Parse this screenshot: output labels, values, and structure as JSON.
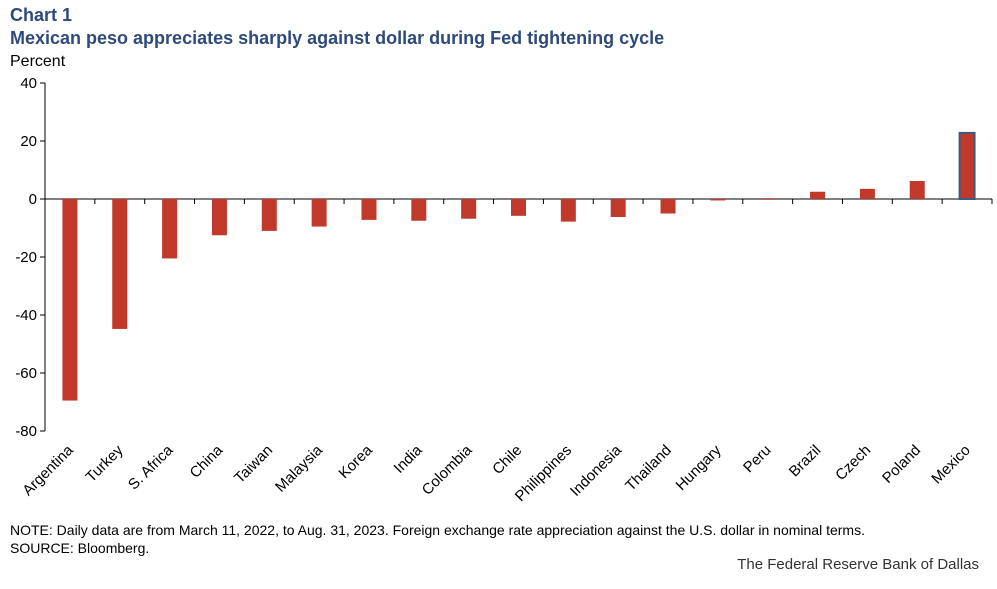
{
  "header": {
    "chart_label": "Chart 1",
    "title": "Mexican peso appreciates sharply against dollar during Fed tightening cycle",
    "unit": "Percent"
  },
  "footer": {
    "note": "NOTE: Daily data are from March 11, 2022, to Aug. 31, 2023. Foreign exchange rate appreciation against the U.S. dollar in nominal terms.",
    "source": "SOURCE: Bloomberg.",
    "credit": "The Federal Reserve Bank of Dallas"
  },
  "colors": {
    "bar": "#c0392b",
    "highlight_border": "#3d5a80",
    "title": "#2e4a7d"
  },
  "chart_data": {
    "type": "bar",
    "title": "Mexican peso appreciates sharply against dollar during Fed tightening cycle",
    "xlabel": "",
    "ylabel": "Percent",
    "ylim": [
      -80,
      40
    ],
    "yticks": [
      40,
      20,
      0,
      -20,
      -40,
      -60,
      -80
    ],
    "grid": false,
    "categories": [
      "Argentina",
      "Turkey",
      "S. Africa",
      "China",
      "Taiwan",
      "Malaysia",
      "Korea",
      "India",
      "Colombia",
      "Chile",
      "Philippines",
      "Indonesia",
      "Thailand",
      "Hungary",
      "Peru",
      "Brazil",
      "Czech",
      "Poland",
      "Mexico"
    ],
    "values": [
      -69.5,
      -44.8,
      -20.5,
      -12.5,
      -11.0,
      -9.5,
      -7.2,
      -7.5,
      -6.8,
      -5.8,
      -7.8,
      -6.2,
      -5.0,
      -0.5,
      0.3,
      2.5,
      3.5,
      6.2,
      22.8
    ],
    "highlight": "Mexico"
  }
}
